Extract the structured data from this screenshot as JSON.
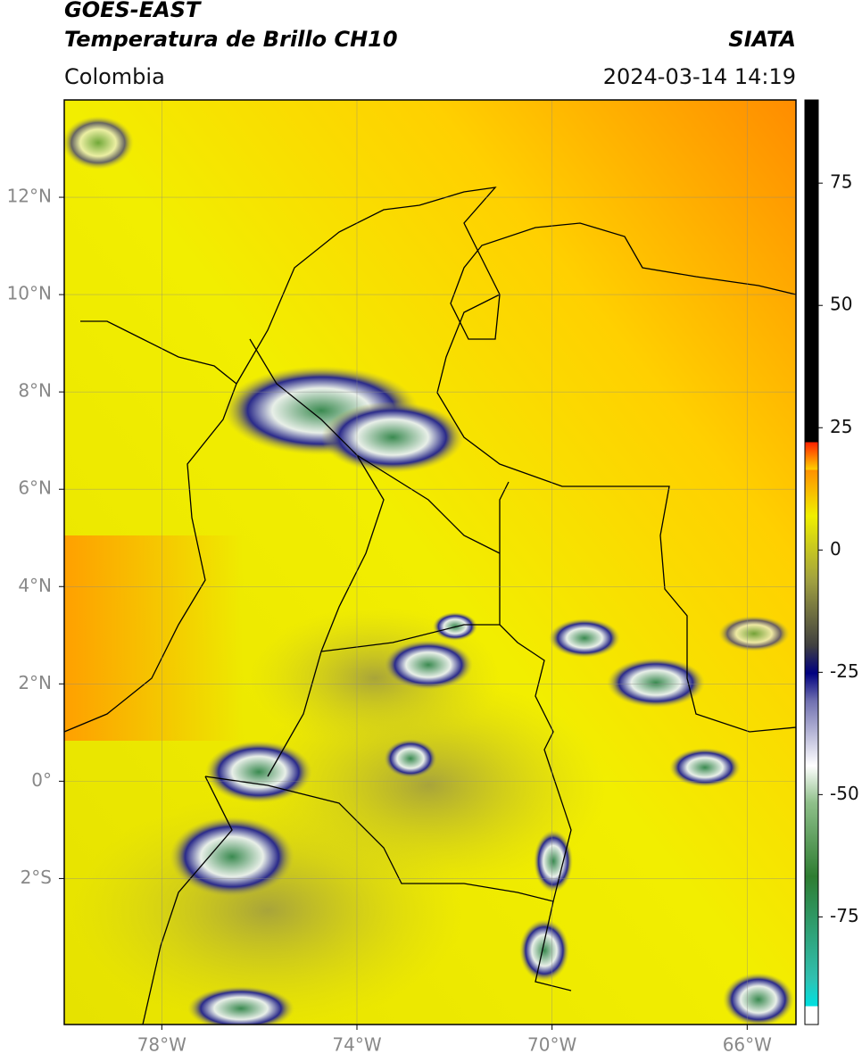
{
  "header": {
    "title": "GOES-EAST",
    "subtitle": "Temperatura de Brillo CH10",
    "source": "SIATA",
    "region": "Colombia",
    "datetime": "2024-03-14 14:19"
  },
  "map": {
    "xlim": [
      -80,
      -65
    ],
    "ylim": [
      -5,
      14
    ],
    "xticks": [
      {
        "value": -78,
        "label": "78°W"
      },
      {
        "value": -74,
        "label": "74°W"
      },
      {
        "value": -70,
        "label": "70°W"
      },
      {
        "value": -66,
        "label": "66°W"
      }
    ],
    "yticks": [
      {
        "value": 12,
        "label": "12°N"
      },
      {
        "value": 10,
        "label": "10°N"
      },
      {
        "value": 8,
        "label": "8°N"
      },
      {
        "value": 6,
        "label": "6°N"
      },
      {
        "value": 4,
        "label": "4°N"
      },
      {
        "value": 2,
        "label": "2°N"
      },
      {
        "value": 0,
        "label": "0°"
      },
      {
        "value": -2,
        "label": "2°S"
      }
    ],
    "grid": true
  },
  "colorbar": {
    "lim": [
      -97,
      92
    ],
    "ticks": [
      75,
      50,
      25,
      0,
      -25,
      -50,
      -75
    ]
  }
}
